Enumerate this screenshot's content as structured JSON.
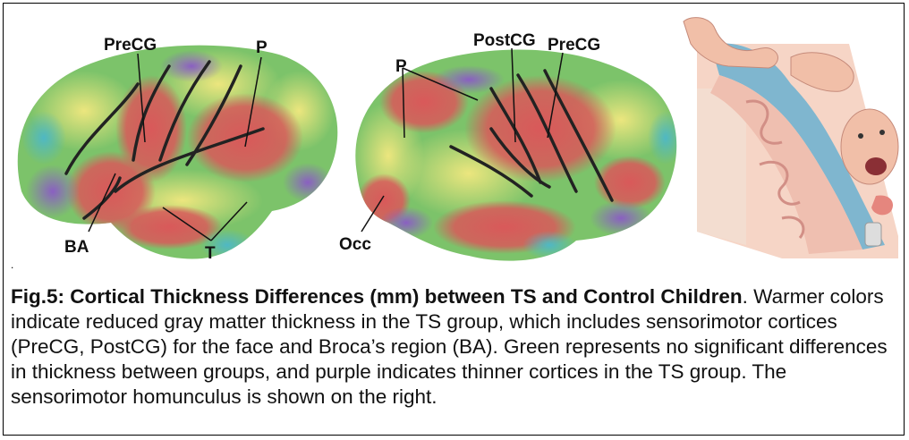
{
  "figure": {
    "left_brain_labels": {
      "precg": "PreCG",
      "p": "P",
      "ba": "BA",
      "t": "T"
    },
    "right_brain_labels": {
      "postcg": "PostCG",
      "precg": "PreCG",
      "p": "P",
      "occ": "Occ"
    },
    "colors": {
      "reduced": "#d9595a",
      "yellow": "#e8e27a",
      "green": "#7cc36a",
      "cyan": "#4fb8c4",
      "purple": "#8a5fc2",
      "homunculus_skin": "#f3c8b6",
      "homunculus_blue": "#7fb6cf"
    }
  },
  "caption": {
    "dot": ".",
    "title": "Fig.5: Cortical Thickness Differences (mm) between TS and Control Children",
    "title_end": ".",
    "body": "Warmer colors indicate reduced gray matter thickness in the TS group, which includes sensorimotor cortices (PreCG, PostCG) for the face and Broca’s region (BA). Green represents no significant differences in thickness between groups, and purple indicates thinner cortices in the TS group. The sensorimotor homunculus is shown on the right."
  }
}
